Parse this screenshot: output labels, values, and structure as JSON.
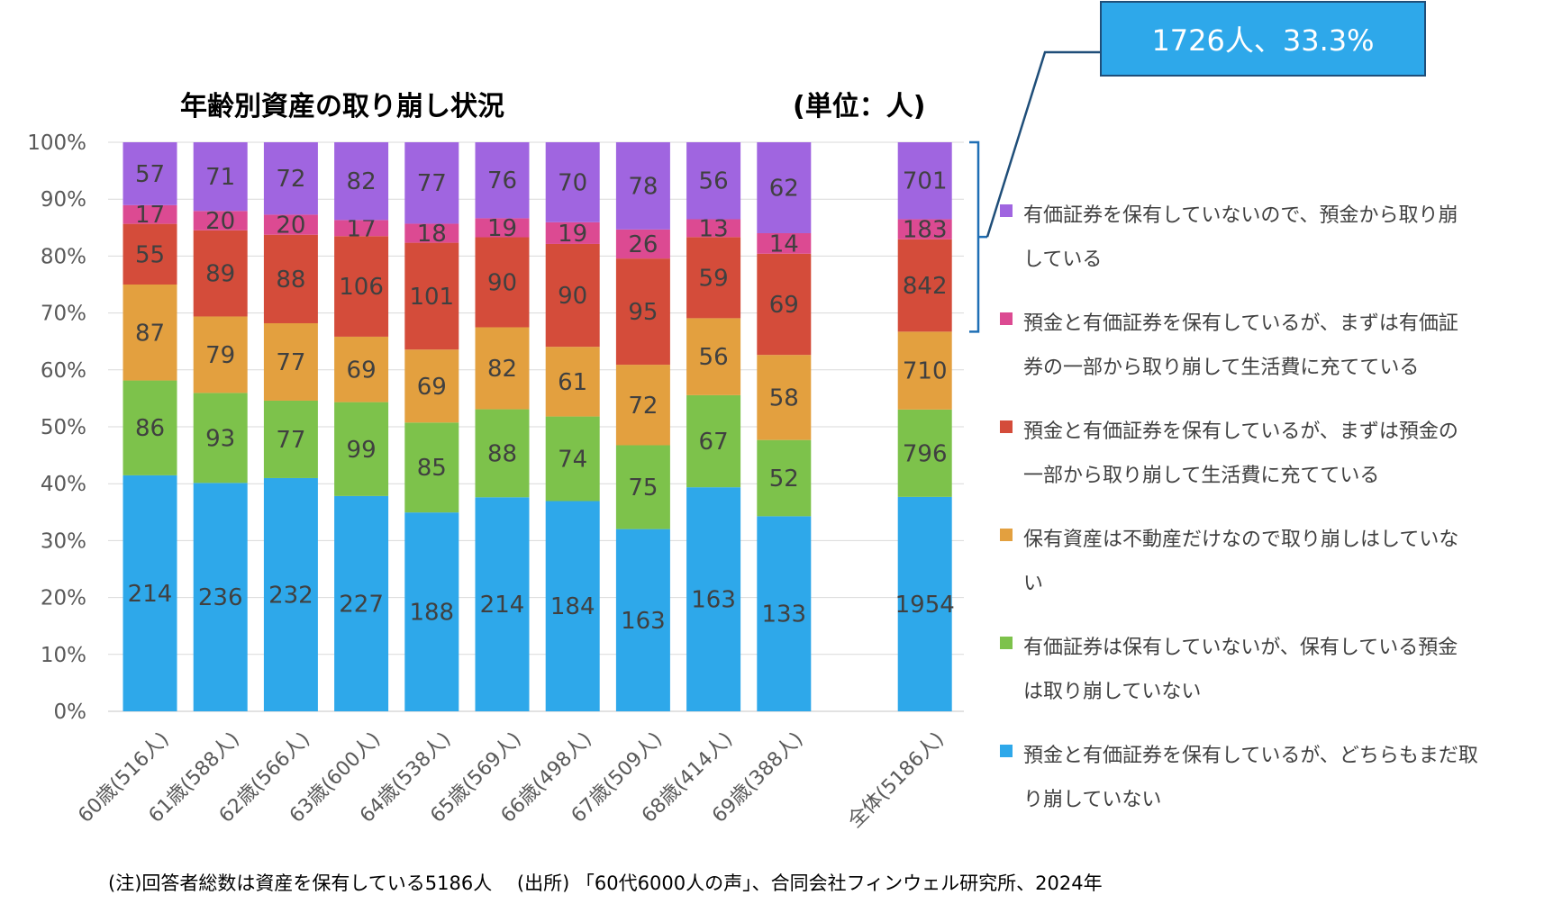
{
  "chart_data": {
    "type": "bar",
    "stacked": "percent",
    "title": "年齢別資産の取り崩し状況",
    "unit_label": "(単位：人)",
    "ylim": [
      0,
      100
    ],
    "y_ticks": [
      "0%",
      "10%",
      "20%",
      "30%",
      "40%",
      "50%",
      "60%",
      "70%",
      "80%",
      "90%",
      "100%"
    ],
    "categories": [
      "60歳(516人)",
      "61歳(588人)",
      "62歳(566人)",
      "63歳(600人)",
      "64歳(538人)",
      "65歳(569人)",
      "66歳(498人)",
      "67歳(509人)",
      "68歳(414人)",
      "69歳(388人)",
      "",
      "全体(5186人)"
    ],
    "series": [
      {
        "name": "預金と有価証券を保有しているが、どちらもまだ取り崩していない",
        "color": "#2EA8EA",
        "values": [
          214,
          236,
          232,
          227,
          188,
          214,
          184,
          163,
          163,
          133,
          null,
          1954
        ]
      },
      {
        "name": "有価証券は保有していないが、保有している預金は取り崩していない",
        "color": "#7DC24B",
        "values": [
          86,
          93,
          77,
          99,
          85,
          88,
          74,
          75,
          67,
          52,
          null,
          796
        ]
      },
      {
        "name": "保有資産は不動産だけなので取り崩しはしていない",
        "color": "#E3A03F",
        "values": [
          87,
          79,
          77,
          69,
          69,
          82,
          61,
          72,
          56,
          58,
          null,
          710
        ]
      },
      {
        "name": "預金と有価証券を保有しているが、まずは預金の一部から取り崩して生活費に充てている",
        "color": "#D44C3A",
        "values": [
          55,
          89,
          88,
          106,
          101,
          90,
          90,
          95,
          59,
          69,
          null,
          842
        ]
      },
      {
        "name": "預金と有価証券を保有しているが、まずは有価証券の一部から取り崩して生活費に充てている",
        "color": "#DC4A92",
        "values": [
          17,
          20,
          20,
          17,
          18,
          19,
          19,
          26,
          13,
          14,
          null,
          183
        ]
      },
      {
        "name": "有価証券を保有していないので、預金から取り崩している",
        "color": "#A065E0",
        "values": [
          57,
          71,
          72,
          82,
          77,
          76,
          70,
          78,
          56,
          62,
          null,
          701
        ]
      }
    ],
    "legend_lines": [
      [
        "有価証券を保有していないので、預金から取り崩",
        "している"
      ],
      [
        "預金と有価証券を保有しているが、まずは有価証",
        "券の一部から取り崩して生活費に充てている"
      ],
      [
        "預金と有価証券を保有しているが、まずは預金の",
        "一部から取り崩して生活費に充てている"
      ],
      [
        "保有資産は不動産だけなので取り崩しはしていな",
        "い"
      ],
      [
        "有価証券は保有していないが、保有している預金",
        "は取り崩していない"
      ],
      [
        "預金と有価証券を保有しているが、どちらもまだ取",
        "り崩していない"
      ]
    ],
    "callout": "1726人、33.3%",
    "callout_color": "#2EA8EA",
    "callout_border": "#1F4E79",
    "bracket_color": "#1F6FB5"
  },
  "footnote": "(注)回答者総数は資産を保有している5186人　 (出所) 「60代6000人の声」、合同会社フィンウェル研究所、2024年"
}
